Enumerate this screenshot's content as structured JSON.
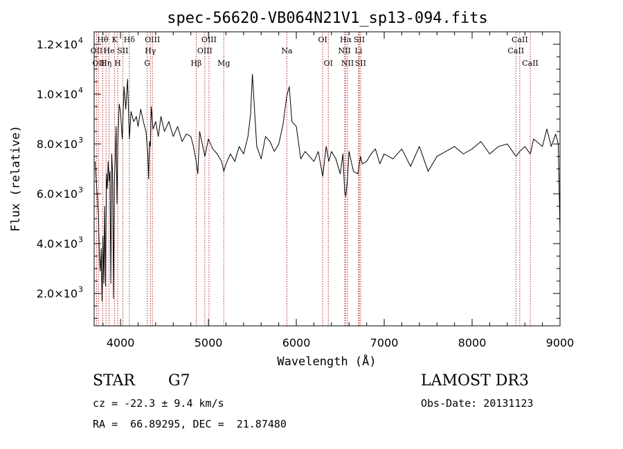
{
  "chart_data": {
    "type": "line",
    "title": "spec-56620-VB064N21V1_sp13-094.fits",
    "xlabel": "Wavelength (Å)",
    "ylabel": "Flux (relative)",
    "xlim": [
      3700,
      9000
    ],
    "ylim": [
      700,
      12500
    ],
    "xticks": [
      {
        "value": 4000,
        "label": "4000"
      },
      {
        "value": 5000,
        "label": "5000"
      },
      {
        "value": 6000,
        "label": "6000"
      },
      {
        "value": 7000,
        "label": "7000"
      },
      {
        "value": 8000,
        "label": "8000"
      },
      {
        "value": 9000,
        "label": "9000"
      }
    ],
    "yticks": [
      {
        "value": 2000,
        "mantissa": "2.0",
        "exp": "3"
      },
      {
        "value": 4000,
        "mantissa": "4.0",
        "exp": "3"
      },
      {
        "value": 6000,
        "mantissa": "6.0",
        "exp": "3"
      },
      {
        "value": 8000,
        "mantissa": "8.0",
        "exp": "3"
      },
      {
        "value": 10000,
        "mantissa": "1.0",
        "exp": "4"
      },
      {
        "value": 12000,
        "mantissa": "1.2",
        "exp": "4"
      }
    ],
    "series": [
      {
        "name": "flux",
        "x": [
          3710,
          3730,
          3750,
          3760,
          3770,
          3780,
          3790,
          3800,
          3810,
          3820,
          3830,
          3840,
          3850,
          3860,
          3870,
          3880,
          3890,
          3900,
          3910,
          3920,
          3930,
          3940,
          3950,
          3960,
          3970,
          3985,
          4000,
          4020,
          4040,
          4060,
          4080,
          4101,
          4120,
          4150,
          4180,
          4200,
          4230,
          4260,
          4290,
          4310,
          4320,
          4330,
          4340,
          4350,
          4370,
          4400,
          4430,
          4460,
          4500,
          4550,
          4600,
          4650,
          4700,
          4750,
          4800,
          4830,
          4861,
          4880,
          4900,
          4930,
          4960,
          5000,
          5050,
          5100,
          5150,
          5175,
          5200,
          5250,
          5300,
          5350,
          5400,
          5450,
          5480,
          5500,
          5550,
          5600,
          5650,
          5700,
          5750,
          5800,
          5850,
          5890,
          5920,
          5950,
          6000,
          6050,
          6100,
          6150,
          6200,
          6250,
          6300,
          6340,
          6370,
          6400,
          6450,
          6500,
          6530,
          6550,
          6563,
          6580,
          6600,
          6650,
          6700,
          6730,
          6750,
          6800,
          6850,
          6900,
          6950,
          7000,
          7100,
          7200,
          7300,
          7400,
          7500,
          7600,
          7700,
          7800,
          7900,
          8000,
          8100,
          8200,
          8300,
          8400,
          8500,
          8542,
          8600,
          8662,
          8700,
          8800,
          8850,
          8900,
          8950,
          8980,
          9000
        ],
        "values": [
          7300,
          6200,
          5100,
          3400,
          2900,
          3800,
          1700,
          4300,
          2400,
          5500,
          2300,
          6800,
          6200,
          7300,
          6500,
          6900,
          2400,
          7600,
          6800,
          1800,
          6500,
          7400,
          8700,
          5600,
          8100,
          9600,
          9300,
          8200,
          10300,
          9400,
          10600,
          8200,
          9300,
          8900,
          9100,
          8700,
          9400,
          8900,
          8500,
          7600,
          6600,
          8100,
          7900,
          9500,
          8600,
          8900,
          8300,
          9100,
          8500,
          8900,
          8300,
          8700,
          8100,
          8400,
          8300,
          7900,
          7300,
          6800,
          8500,
          8000,
          7500,
          8200,
          7800,
          7600,
          7300,
          6900,
          7200,
          7600,
          7300,
          7900,
          7600,
          8300,
          9200,
          10800,
          7900,
          7400,
          8300,
          8100,
          7700,
          8000,
          8800,
          9900,
          10300,
          8900,
          8700,
          7400,
          7700,
          7500,
          7300,
          7700,
          6700,
          7900,
          7300,
          7700,
          7400,
          6800,
          7600,
          6100,
          5900,
          6500,
          7700,
          6900,
          6800,
          7500,
          7200,
          7300,
          7600,
          7800,
          7200,
          7600,
          7400,
          7800,
          7100,
          7900,
          6900,
          7500,
          7700,
          7900,
          7600,
          7800,
          8100,
          7600,
          7900,
          8000,
          7500,
          7700,
          7900,
          7600,
          8200,
          7900,
          8600,
          7900,
          8400,
          8000,
          4500
        ]
      }
    ],
    "lines": [
      {
        "wavelength": 3727,
        "label": "OII",
        "row": 2
      },
      {
        "wavelength": 3750,
        "label": "OII",
        "row": 3
      },
      {
        "wavelength": 3798,
        "label": "Hθ",
        "row": 1
      },
      {
        "wavelength": 3835,
        "label": "Hη",
        "row": 3
      },
      {
        "wavelength": 3869,
        "label": "He",
        "row": 2
      },
      {
        "wavelength": 3933,
        "label": "K",
        "row": 1
      },
      {
        "wavelength": 3968,
        "label": "H",
        "row": 3
      },
      {
        "wavelength": 4026,
        "label": "SII",
        "row": 2
      },
      {
        "wavelength": 4101,
        "label": "Hδ",
        "row": 1
      },
      {
        "wavelength": 4304,
        "label": "G",
        "row": 3
      },
      {
        "wavelength": 4340,
        "label": "Hγ",
        "row": 2
      },
      {
        "wavelength": 4363,
        "label": "OIII",
        "row": 1
      },
      {
        "wavelength": 4861,
        "label": "Hβ",
        "row": 3
      },
      {
        "wavelength": 4959,
        "label": "OIII",
        "row": 2
      },
      {
        "wavelength": 5007,
        "label": "OIII",
        "row": 1
      },
      {
        "wavelength": 5175,
        "label": "Mg",
        "row": 3
      },
      {
        "wavelength": 5893,
        "label": "Na",
        "row": 2
      },
      {
        "wavelength": 6300,
        "label": "OI",
        "row": 1
      },
      {
        "wavelength": 6364,
        "label": "OI",
        "row": 3
      },
      {
        "wavelength": 6548,
        "label": "NII",
        "row": 2
      },
      {
        "wavelength": 6563,
        "label": "Hα",
        "row": 1
      },
      {
        "wavelength": 6583,
        "label": "NII",
        "row": 3
      },
      {
        "wavelength": 6708,
        "label": "Li",
        "row": 2
      },
      {
        "wavelength": 6716,
        "label": "SII",
        "row": 1
      },
      {
        "wavelength": 6731,
        "label": "SII",
        "row": 3
      },
      {
        "wavelength": 8498,
        "label": "CaII",
        "row": 2
      },
      {
        "wavelength": 8542,
        "label": "CaII",
        "row": 1
      },
      {
        "wavelength": 8662,
        "label": "CaII",
        "row": 3
      }
    ]
  },
  "info": {
    "class": "STAR",
    "subclass": "G7",
    "redshift": "cz = -22.3 ± 9.4 km/s",
    "coords": "RA =  66.89295, DEC =  21.87480",
    "survey": "LAMOST DR3",
    "obs_date": "Obs-Date: 20131123"
  },
  "colors": {
    "line_marker": "#b22222",
    "spectrum": "#000000"
  }
}
